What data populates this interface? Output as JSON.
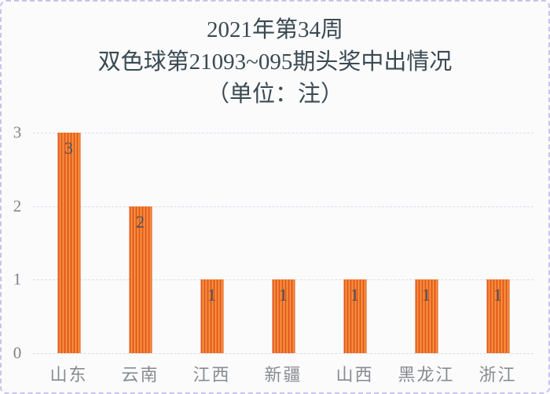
{
  "page": {
    "background": "#fbfbfc",
    "border_color": "#c9c2ec"
  },
  "title": {
    "line1": "2021年第34周",
    "line2": "双色球第21093~095期头奖中出情况",
    "line3": "（单位：注）",
    "color": "#3a4a52"
  },
  "chart_data": {
    "type": "bar",
    "title": "2021年第34周 双色球第21093~095期头奖中出情况（单位：注）",
    "categories": [
      "山东",
      "云南",
      "江西",
      "新疆",
      "山西",
      "黑龙江",
      "浙江"
    ],
    "values": [
      3,
      2,
      1,
      1,
      1,
      1,
      1
    ],
    "value_labels": [
      "3",
      "2",
      "1",
      "1",
      "1",
      "1",
      "1"
    ],
    "xlabel": "",
    "ylabel": "",
    "ylim": [
      0,
      3
    ],
    "yticks": [
      0,
      1,
      2,
      3
    ],
    "grid": true,
    "legend": "none",
    "bar_stripe_dark": "#e3571e",
    "bar_stripe_light": "#f6953f",
    "gridline_color": "#d7dfe9",
    "tick_label_color": "#7d8287",
    "category_label_color": "#878b90",
    "value_label_color": "#46525c"
  }
}
